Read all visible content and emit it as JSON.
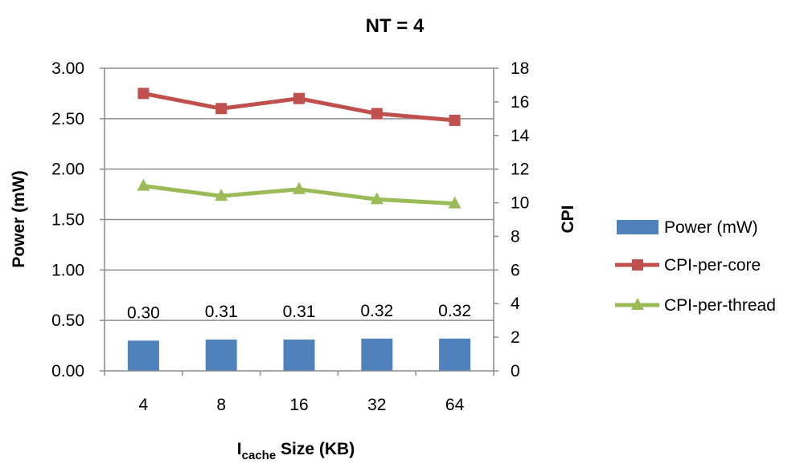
{
  "chart_data": {
    "type": "bar",
    "title": "NT = 4",
    "xlabel_main": "I",
    "xlabel_sub": "cache",
    "xlabel_rest": " Size (KB)",
    "ylabel": "Power (mW)",
    "y2label": "CPI",
    "categories": [
      "4",
      "8",
      "16",
      "32",
      "64"
    ],
    "ylim": [
      0,
      3
    ],
    "y2lim": [
      0,
      18
    ],
    "y_ticks": [
      "0.00",
      "0.50",
      "1.00",
      "1.50",
      "2.00",
      "2.50",
      "3.00"
    ],
    "y2_ticks": [
      "0",
      "2",
      "4",
      "6",
      "8",
      "10",
      "12",
      "14",
      "16",
      "18"
    ],
    "grid": true,
    "legend_position": "right",
    "series": [
      {
        "name": "Power (mW)",
        "kind": "bar",
        "axis": "left",
        "color": "#4f81bd",
        "values": [
          0.3,
          0.31,
          0.31,
          0.32,
          0.32
        ],
        "labels": [
          "0.30",
          "0.31",
          "0.31",
          "0.32",
          "0.32"
        ]
      },
      {
        "name": "CPI-per-core",
        "kind": "line",
        "marker": "square",
        "axis": "right",
        "color": "#c0504d",
        "values": [
          16.5,
          15.6,
          16.2,
          15.3,
          14.9
        ]
      },
      {
        "name": "CPI-per-thread",
        "kind": "line",
        "marker": "triangle",
        "axis": "right",
        "color": "#9bbb59",
        "values": [
          11.0,
          10.4,
          10.8,
          10.2,
          9.95
        ]
      }
    ]
  }
}
